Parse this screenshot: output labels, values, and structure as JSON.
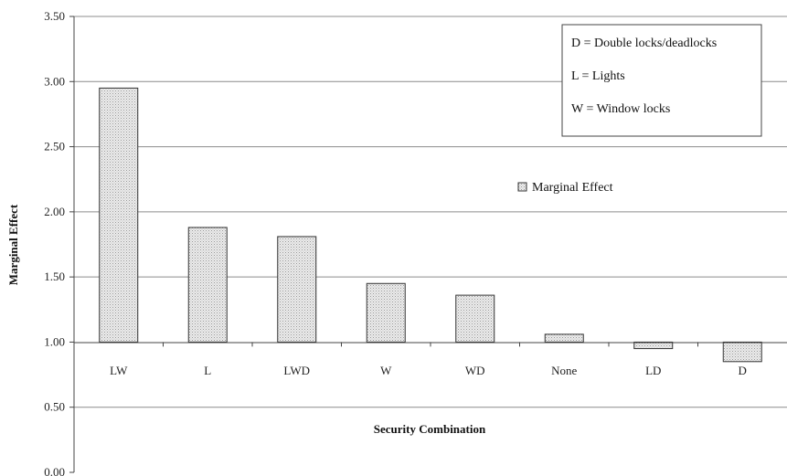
{
  "chart_data": {
    "type": "bar",
    "title": "",
    "xlabel": "Security Combination",
    "ylabel": "Marginal Effect",
    "ylim": [
      0,
      3.5
    ],
    "yticks": [
      "0.00",
      "0.50",
      "1.00",
      "1.50",
      "2.00",
      "2.50",
      "3.00",
      "3.50"
    ],
    "baseline": 1.0,
    "grid": true,
    "categories": [
      "LW",
      "L",
      "LWD",
      "W",
      "WD",
      "None",
      "LD",
      "D"
    ],
    "series": [
      {
        "name": "Marginal Effect",
        "values": [
          2.95,
          1.88,
          1.81,
          1.45,
          1.36,
          1.06,
          0.95,
          0.85
        ]
      }
    ],
    "legend": {
      "placement": "right",
      "series_label": "Marginal Effect"
    },
    "key_box": {
      "placement": "top-right",
      "lines": [
        "D = Double locks/deadlocks",
        "L = Lights",
        "W = Window locks"
      ]
    },
    "colors": {
      "bar_fill": "#e6e6e6",
      "bar_stroke": "#333333",
      "grid": "#8c8c8c"
    }
  }
}
